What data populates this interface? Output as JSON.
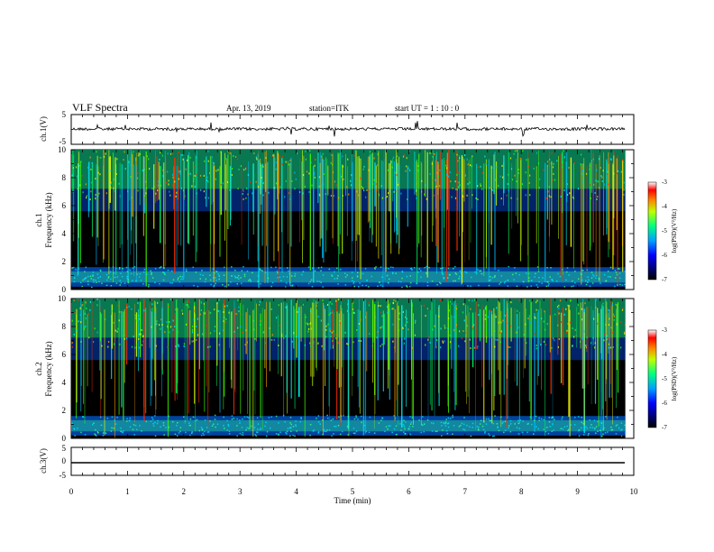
{
  "header": {
    "title": "VLF Spectra",
    "date": "Apr. 13, 2019",
    "station": "station=ITK",
    "start": "start  UT =   1 : 10 : 0"
  },
  "chart_data": [
    {
      "type": "line",
      "title": "",
      "ylabel": "ch.1(V)",
      "ylim": [
        -5,
        5
      ],
      "yticks": [
        "5",
        "-5"
      ],
      "description": "noisy waveform near 0 V with sparse spikes"
    },
    {
      "type": "heatmap",
      "ylabel_line1": "ch.1",
      "ylabel_line2": "Frequency (kHz)",
      "ylim": [
        0,
        10
      ],
      "yticks": [
        "0",
        "2",
        "4",
        "6",
        "8",
        "10"
      ],
      "colorbar": {
        "label": "log(PSD)(V²/Hz)",
        "ticks": [
          "-3",
          "-4",
          "-5",
          "-6",
          "-7"
        ],
        "range": [
          -7,
          -3
        ]
      }
    },
    {
      "type": "heatmap",
      "ylabel_line1": "ch.2",
      "ylabel_line2": "Frequency (kHz)",
      "ylim": [
        0,
        10
      ],
      "yticks": [
        "0",
        "2",
        "4",
        "6",
        "8",
        "10"
      ],
      "colorbar": {
        "label": "log(PSD)(V²/Hz)",
        "ticks": [
          "-3",
          "-4",
          "-5",
          "-6",
          "-7"
        ],
        "range": [
          -7,
          -3
        ]
      }
    },
    {
      "type": "line",
      "ylabel": "ch.3(V)",
      "ylim": [
        -5,
        5
      ],
      "yticks": [
        "5",
        "0",
        "-5"
      ],
      "description": "flat line near -1 V"
    }
  ],
  "xaxis": {
    "label": "Time (min)",
    "xlim": [
      0,
      10
    ],
    "ticks": [
      "0",
      "1",
      "2",
      "3",
      "4",
      "5",
      "6",
      "7",
      "8",
      "9",
      "10"
    ],
    "data_end": 9.85
  }
}
